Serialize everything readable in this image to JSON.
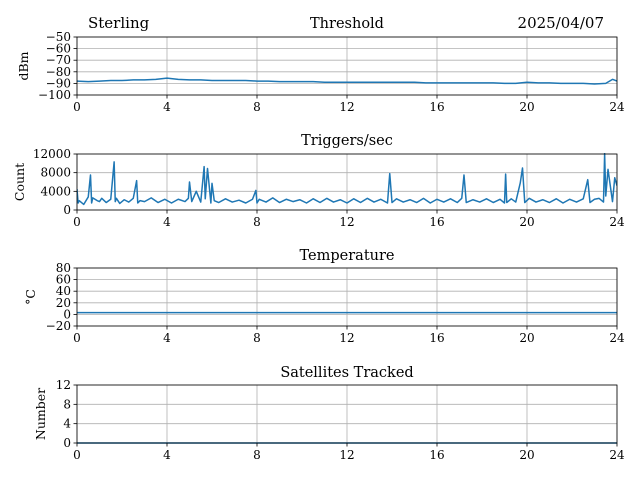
{
  "header": {
    "site": "Sterling",
    "date": "2025/04/07"
  },
  "colors": {
    "series": "#1f77b4",
    "grid": "#b0b0b0",
    "axis": "#000000"
  },
  "chart_data": [
    {
      "type": "line",
      "title": "Threshold",
      "xlabel": "",
      "ylabel": "dBm",
      "xlim": [
        0,
        24
      ],
      "ylim": [
        -100,
        -50
      ],
      "xticks": [
        0,
        4,
        8,
        12,
        16,
        20,
        24
      ],
      "yticks": [
        -100,
        -90,
        -80,
        -70,
        -60,
        -50
      ],
      "ytick_labels": [
        "−100",
        "−90",
        "−80",
        "−70",
        "−60",
        "−50"
      ],
      "grid": true,
      "series": [
        {
          "x": [
            0,
            0.5,
            1,
            1.5,
            2,
            2.5,
            3,
            3.5,
            4,
            4.5,
            5,
            5.5,
            6,
            6.5,
            7,
            7.5,
            8,
            8.5,
            9,
            9.5,
            10,
            10.5,
            11,
            11.5,
            12,
            12.5,
            13,
            13.5,
            14,
            14.5,
            15,
            15.5,
            16,
            16.5,
            17,
            17.5,
            18,
            18.5,
            19,
            19.5,
            20,
            20.5,
            21,
            21.5,
            22,
            22.5,
            23,
            23.5,
            23.8,
            24
          ],
          "y": [
            -88,
            -88.5,
            -88,
            -87.5,
            -87.5,
            -87,
            -87,
            -86.5,
            -85.5,
            -86.5,
            -87,
            -87,
            -87.5,
            -87.5,
            -87.5,
            -87.5,
            -88,
            -88,
            -88.5,
            -88.5,
            -88.5,
            -88.5,
            -89,
            -89,
            -89,
            -89,
            -89,
            -89,
            -89,
            -89,
            -89,
            -89.5,
            -89.5,
            -89.5,
            -89.5,
            -89.5,
            -89.5,
            -89.5,
            -90,
            -90,
            -89,
            -89.5,
            -89.5,
            -90,
            -90,
            -90,
            -90.5,
            -90,
            -86.5,
            -88
          ]
        }
      ]
    },
    {
      "type": "line",
      "title": "Triggers/sec",
      "xlabel": "",
      "ylabel": "Count",
      "xlim": [
        0,
        24
      ],
      "ylim": [
        0,
        12000
      ],
      "xticks": [
        0,
        4,
        8,
        12,
        16,
        20,
        24
      ],
      "yticks": [
        0,
        4000,
        8000,
        12000
      ],
      "ytick_labels": [
        "0",
        "4000",
        "8000",
        "12000"
      ],
      "grid": true,
      "series": [
        {
          "x": [
            0,
            0.05,
            0.1,
            0.3,
            0.5,
            0.6,
            0.65,
            0.7,
            0.9,
            1.0,
            1.1,
            1.3,
            1.5,
            1.65,
            1.7,
            1.75,
            1.9,
            2.1,
            2.3,
            2.5,
            2.65,
            2.7,
            2.8,
            3.0,
            3.3,
            3.6,
            3.9,
            4.2,
            4.5,
            4.8,
            4.95,
            5.0,
            5.1,
            5.3,
            5.5,
            5.65,
            5.7,
            5.8,
            5.95,
            6.0,
            6.1,
            6.3,
            6.6,
            6.9,
            7.2,
            7.5,
            7.8,
            7.95,
            8.0,
            8.1,
            8.4,
            8.7,
            9.0,
            9.3,
            9.6,
            9.9,
            10.2,
            10.5,
            10.8,
            11.1,
            11.4,
            11.7,
            12.0,
            12.3,
            12.6,
            12.9,
            13.2,
            13.5,
            13.8,
            13.9,
            14.0,
            14.2,
            14.5,
            14.8,
            15.1,
            15.4,
            15.7,
            16.0,
            16.3,
            16.6,
            16.9,
            17.1,
            17.2,
            17.3,
            17.6,
            17.9,
            18.2,
            18.5,
            18.8,
            19.0,
            19.05,
            19.1,
            19.3,
            19.5,
            19.7,
            19.8,
            19.9,
            20.1,
            20.4,
            20.7,
            21.0,
            21.3,
            21.6,
            21.9,
            22.2,
            22.5,
            22.7,
            22.8,
            23.0,
            23.2,
            23.4,
            23.45,
            23.5,
            23.6,
            23.8,
            23.9,
            24.0
          ],
          "y": [
            4500,
            1500,
            2000,
            1200,
            2800,
            7500,
            1500,
            2600,
            2000,
            1800,
            2500,
            1600,
            2300,
            10300,
            1800,
            2500,
            1400,
            2200,
            1700,
            2500,
            6300,
            1500,
            2000,
            1800,
            2600,
            1600,
            2300,
            1500,
            2300,
            1800,
            2500,
            6000,
            1800,
            4000,
            1700,
            9300,
            2400,
            8900,
            1500,
            5700,
            2000,
            1600,
            2400,
            1700,
            2100,
            1500,
            2300,
            4200,
            1500,
            2300,
            1700,
            2600,
            1600,
            2300,
            1800,
            2200,
            1500,
            2400,
            1600,
            2500,
            1700,
            2200,
            1500,
            2400,
            1600,
            2500,
            1700,
            2300,
            1500,
            7800,
            1600,
            2400,
            1700,
            2200,
            1600,
            2500,
            1500,
            2300,
            1700,
            2400,
            1600,
            2500,
            7500,
            1600,
            2200,
            1700,
            2400,
            1600,
            2300,
            1500,
            7700,
            1600,
            2400,
            1700,
            5800,
            9000,
            1600,
            2500,
            1700,
            2200,
            1600,
            2400,
            1500,
            2300,
            1700,
            2400,
            6500,
            1600,
            2300,
            2500,
            1700,
            12100,
            3000,
            8700,
            1800,
            6900,
            5200
          ]
        }
      ]
    },
    {
      "type": "line",
      "title": "Temperature",
      "xlabel": "",
      "ylabel": "°C",
      "xlim": [
        0,
        24
      ],
      "ylim": [
        -20,
        80
      ],
      "xticks": [
        0,
        4,
        8,
        12,
        16,
        20,
        24
      ],
      "yticks": [
        -20,
        0,
        20,
        40,
        60,
        80
      ],
      "ytick_labels": [
        "−20",
        "0",
        "20",
        "40",
        "60",
        "80"
      ],
      "grid": true,
      "series": [
        {
          "x": [
            0,
            24
          ],
          "y": [
            3,
            3
          ]
        }
      ]
    },
    {
      "type": "line",
      "title": "Satellites Tracked",
      "xlabel": "",
      "ylabel": "Number",
      "xlim": [
        0,
        24
      ],
      "ylim": [
        0,
        12
      ],
      "xticks": [
        0,
        4,
        8,
        12,
        16,
        20,
        24
      ],
      "yticks": [
        0,
        4,
        8,
        12
      ],
      "ytick_labels": [
        "0",
        "4",
        "8",
        "12"
      ],
      "grid": true,
      "series": [
        {
          "x": [
            0,
            24
          ],
          "y": [
            0,
            0
          ]
        }
      ]
    }
  ]
}
